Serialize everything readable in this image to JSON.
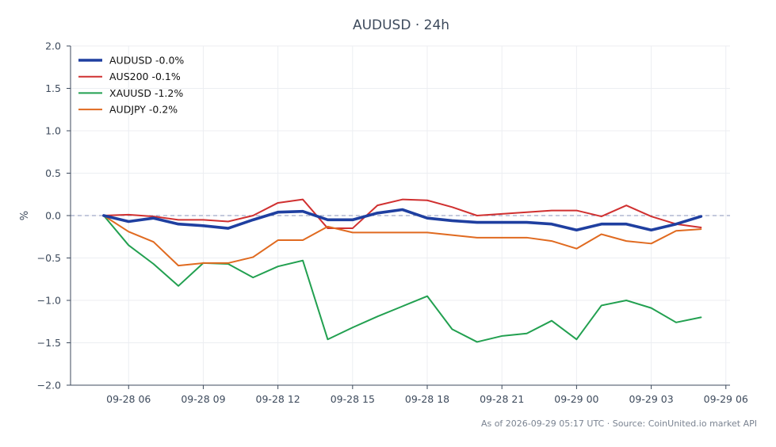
{
  "chart_data": {
    "type": "line",
    "title": "AUDUSD · 24h",
    "xlabel": "",
    "ylabel": "%",
    "ylim": [
      -2.0,
      2.0
    ],
    "yticks": [
      2.0,
      1.5,
      1.0,
      0.5,
      0.0,
      -0.5,
      -1.0,
      -1.5,
      -2.0
    ],
    "ytick_labels": [
      "2.0",
      "1.5",
      "1.0",
      "0.5",
      "0.0",
      "−0.5",
      "−1.0",
      "−1.5",
      "−2.0"
    ],
    "xlim": [
      "2026-09-28 03:40",
      "2026-09-29 06:10"
    ],
    "xticks": [
      "2026-09-28 06:00",
      "2026-09-28 09:00",
      "2026-09-28 12:00",
      "2026-09-28 15:00",
      "2026-09-28 18:00",
      "2026-09-28 21:00",
      "2026-09-29 00:00",
      "2026-09-29 03:00",
      "2026-09-29 06:00"
    ],
    "xtick_labels": [
      "09-28 06",
      "09-28 09",
      "09-28 12",
      "09-28 15",
      "09-28 18",
      "09-28 21",
      "09-29 00",
      "09-29 03",
      "09-29 06"
    ],
    "grid": true,
    "zero_line": true,
    "legend_position": "top-left",
    "x": [
      "2026-09-28 05:00",
      "2026-09-28 06:00",
      "2026-09-28 07:00",
      "2026-09-28 08:00",
      "2026-09-28 09:00",
      "2026-09-28 10:00",
      "2026-09-28 11:00",
      "2026-09-28 12:00",
      "2026-09-28 13:00",
      "2026-09-28 14:00",
      "2026-09-28 15:00",
      "2026-09-28 16:00",
      "2026-09-28 17:00",
      "2026-09-28 18:00",
      "2026-09-28 19:00",
      "2026-09-28 20:00",
      "2026-09-28 21:00",
      "2026-09-28 22:00",
      "2026-09-28 23:00",
      "2026-09-29 00:00",
      "2026-09-29 01:00",
      "2026-09-29 02:00",
      "2026-09-29 03:00",
      "2026-09-29 04:00",
      "2026-09-29 05:00"
    ],
    "series": [
      {
        "name": "AUDUSD -0.0%",
        "color": "#1f3fa0",
        "values": [
          0.0,
          -0.07,
          -0.03,
          -0.1,
          -0.12,
          -0.15,
          -0.05,
          0.04,
          0.05,
          -0.05,
          -0.05,
          0.03,
          0.07,
          -0.03,
          -0.06,
          -0.08,
          -0.08,
          -0.08,
          -0.1,
          -0.17,
          -0.1,
          -0.1,
          -0.17,
          -0.1,
          -0.01
        ]
      },
      {
        "name": "AUS200 -0.1%",
        "color": "#d03030",
        "values": [
          0.0,
          0.01,
          -0.01,
          -0.05,
          -0.05,
          -0.07,
          0.0,
          0.15,
          0.19,
          -0.15,
          -0.15,
          0.12,
          0.19,
          0.18,
          0.1,
          0.0,
          0.02,
          0.04,
          0.06,
          0.06,
          -0.01,
          0.12,
          -0.01,
          -0.1,
          -0.14
        ]
      },
      {
        "name": "XAUUSD -1.2%",
        "color": "#22a050",
        "values": [
          0.0,
          -0.35,
          -0.57,
          -0.83,
          -0.56,
          -0.57,
          -0.73,
          -0.6,
          -0.53,
          -1.46,
          -1.32,
          -1.19,
          -1.07,
          -0.95,
          -1.34,
          -1.49,
          -1.42,
          -1.39,
          -1.24,
          -1.46,
          -1.06,
          -1.0,
          -1.09,
          -1.26,
          -1.2
        ]
      },
      {
        "name": "AUDJPY -0.2%",
        "color": "#e06a20",
        "values": [
          0.0,
          -0.19,
          -0.31,
          -0.59,
          -0.56,
          -0.56,
          -0.49,
          -0.29,
          -0.29,
          -0.13,
          -0.2,
          -0.2,
          -0.2,
          -0.2,
          -0.23,
          -0.26,
          -0.26,
          -0.26,
          -0.3,
          -0.39,
          -0.22,
          -0.3,
          -0.33,
          -0.18,
          -0.16
        ]
      }
    ]
  },
  "footer": {
    "text": "As of 2026-09-29 05:17 UTC · Source: CoinUnited.io market API"
  }
}
